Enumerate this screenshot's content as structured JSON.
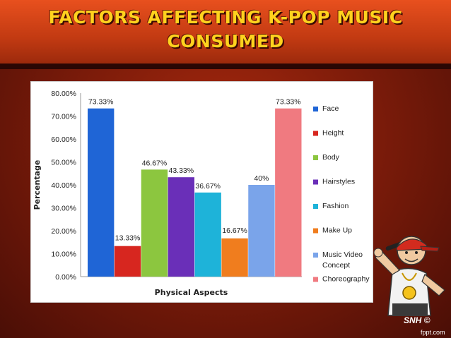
{
  "slide": {
    "title": "FACTORS AFFECTING K-POP MUSIC CONSUMED",
    "credit": "SNH ©",
    "brand": "fppt.com"
  },
  "colors": {
    "background": "#7e1c0a",
    "header": "#e8501e",
    "title": "#ffd21e"
  },
  "chart_data": {
    "type": "bar",
    "title": "",
    "xlabel": "Physical Aspects",
    "ylabel": "Percentage",
    "ylim": [
      0,
      80
    ],
    "yticks": [
      "0.00%",
      "10.00%",
      "20.00%",
      "30.00%",
      "40.00%",
      "50.00%",
      "60.00%",
      "70.00%",
      "80.00%"
    ],
    "grid": false,
    "legend_position": "right",
    "series": [
      {
        "name": "Face",
        "value": 73.33,
        "label": "73.33%",
        "color": "#1f65d6"
      },
      {
        "name": "Height",
        "value": 13.33,
        "label": "13.33%",
        "color": "#d7261f"
      },
      {
        "name": "Body",
        "value": 46.67,
        "label": "46.67%",
        "color": "#8cc63f"
      },
      {
        "name": "Hairstyles",
        "value": 43.33,
        "label": "43.33%",
        "color": "#6a2fb8"
      },
      {
        "name": "Fashion",
        "value": 36.67,
        "label": "36.67%",
        "color": "#1eb3d9"
      },
      {
        "name": "Make Up",
        "value": 16.67,
        "label": "16.67%",
        "color": "#f07d1e"
      },
      {
        "name": "Music Video Concept",
        "value": 40,
        "label": "40%",
        "color": "#7aa4ea"
      },
      {
        "name": "Choreography",
        "value": 73.33,
        "label": "73.33%",
        "color": "#f07a80"
      }
    ]
  }
}
